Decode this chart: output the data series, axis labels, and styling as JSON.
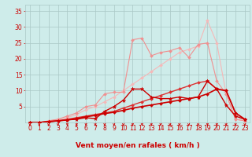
{
  "bg_color": "#ceecea",
  "grid_color": "#aac8c6",
  "line_color_dark": "#cc0000",
  "xlabel": "Vent moyen/en rafales ( km/h )",
  "ylabel_ticks": [
    5,
    10,
    15,
    20,
    25,
    30,
    35
  ],
  "xlim": [
    -0.5,
    23.5
  ],
  "ylim": [
    0,
    37
  ],
  "series": [
    {
      "x": [
        0,
        1,
        2,
        3,
        4,
        5,
        6,
        7,
        8,
        9,
        10,
        11,
        12,
        13,
        14,
        15,
        16,
        17,
        18,
        19,
        20,
        21,
        22,
        23
      ],
      "y": [
        0,
        0,
        0.5,
        1.0,
        1.5,
        2.5,
        4.0,
        5.0,
        6.5,
        8.0,
        10.0,
        12.0,
        14.0,
        16.0,
        18.0,
        20.0,
        22.0,
        23.0,
        24.0,
        32.0,
        25.0,
        9.0,
        1.0,
        0.5
      ],
      "color": "#f5b8b8",
      "marker": "D",
      "markersize": 2.0,
      "linewidth": 0.8
    },
    {
      "x": [
        0,
        1,
        2,
        3,
        4,
        5,
        6,
        7,
        8,
        9,
        10,
        11,
        12,
        13,
        14,
        15,
        16,
        17,
        18,
        19,
        20,
        21,
        22,
        23
      ],
      "y": [
        0,
        0,
        0.5,
        1.0,
        2.0,
        3.0,
        5.0,
        5.5,
        9.0,
        9.5,
        9.5,
        26.0,
        26.5,
        21.0,
        22.0,
        22.5,
        23.5,
        20.5,
        24.5,
        25.0,
        13.0,
        9.0,
        1.0,
        0.5
      ],
      "color": "#f09090",
      "marker": "D",
      "markersize": 2.0,
      "linewidth": 0.8
    },
    {
      "x": [
        0,
        1,
        2,
        3,
        4,
        5,
        6,
        7,
        8,
        9,
        10,
        11,
        12,
        13,
        14,
        15,
        16,
        17,
        18,
        19,
        20,
        21,
        22,
        23
      ],
      "y": [
        0,
        0,
        0.3,
        0.5,
        1.0,
        1.5,
        2.0,
        2.5,
        3.0,
        3.5,
        4.5,
        5.5,
        6.5,
        7.5,
        8.5,
        9.5,
        10.5,
        11.5,
        12.5,
        13.0,
        10.5,
        10.0,
        3.0,
        1.0
      ],
      "color": "#dd3333",
      "marker": "D",
      "markersize": 2.0,
      "linewidth": 1.0
    },
    {
      "x": [
        0,
        1,
        2,
        3,
        4,
        5,
        6,
        7,
        8,
        9,
        10,
        11,
        12,
        13,
        14,
        15,
        16,
        17,
        18,
        19,
        20,
        21,
        22,
        23
      ],
      "y": [
        0,
        0,
        0.2,
        0.5,
        0.8,
        1.0,
        1.5,
        1.2,
        3.5,
        5.0,
        7.0,
        10.5,
        10.5,
        8.0,
        7.5,
        7.5,
        8.0,
        7.5,
        8.0,
        13.0,
        10.5,
        5.5,
        2.0,
        1.0
      ],
      "color": "#cc0000",
      "marker": "*",
      "markersize": 3.5,
      "linewidth": 1.0
    },
    {
      "x": [
        0,
        1,
        2,
        3,
        4,
        5,
        6,
        7,
        8,
        9,
        10,
        11,
        12,
        13,
        14,
        15,
        16,
        17,
        18,
        19,
        20,
        21,
        22,
        23
      ],
      "y": [
        0,
        0,
        0.3,
        0.5,
        0.8,
        1.2,
        1.8,
        2.2,
        2.8,
        3.2,
        3.8,
        4.5,
        5.0,
        5.5,
        6.0,
        6.5,
        7.0,
        7.5,
        8.0,
        9.0,
        10.5,
        10.0,
        3.0,
        1.0
      ],
      "color": "#cc0000",
      "marker": "D",
      "markersize": 2.0,
      "linewidth": 1.2
    }
  ],
  "tick_fontsize": 5.5,
  "axis_fontsize": 6.5
}
